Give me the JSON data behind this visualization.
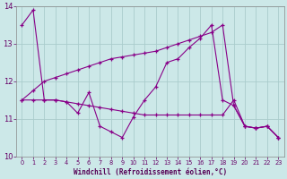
{
  "xlabel": "Windchill (Refroidissement éolien,°C)",
  "background_color": "#cce8e8",
  "grid_color": "#aacccc",
  "line_color": "#880088",
  "xlim": [
    -0.5,
    23.5
  ],
  "ylim": [
    10.0,
    14.0
  ],
  "yticks": [
    10,
    11,
    12,
    13,
    14
  ],
  "xticks": [
    0,
    1,
    2,
    3,
    4,
    5,
    6,
    7,
    8,
    9,
    10,
    11,
    12,
    13,
    14,
    15,
    16,
    17,
    18,
    19,
    20,
    21,
    22,
    23
  ],
  "s1_x": [
    0,
    1,
    2,
    3,
    4,
    5,
    6,
    7,
    8,
    9,
    10,
    11,
    12,
    13,
    14,
    15,
    16,
    17,
    18,
    19,
    20,
    21,
    22,
    23
  ],
  "s1_y": [
    13.5,
    13.9,
    11.5,
    11.5,
    11.45,
    11.15,
    11.7,
    10.8,
    10.65,
    10.5,
    11.05,
    11.5,
    11.85,
    12.5,
    12.6,
    12.9,
    13.15,
    13.5,
    11.5,
    11.35,
    10.8,
    10.75,
    10.8,
    10.5
  ],
  "s2_x": [
    0,
    1,
    2,
    3,
    4,
    5,
    6,
    7,
    8,
    9,
    10,
    11,
    12,
    13,
    14,
    15,
    16,
    17,
    18,
    19,
    20,
    21,
    22,
    23
  ],
  "s2_y": [
    11.5,
    11.75,
    12.0,
    12.1,
    12.2,
    12.3,
    12.4,
    12.5,
    12.6,
    12.65,
    12.7,
    12.75,
    12.8,
    12.9,
    13.0,
    13.1,
    13.2,
    13.3,
    13.5,
    11.35,
    10.8,
    10.75,
    10.8,
    10.5
  ],
  "s3_x": [
    0,
    1,
    2,
    3,
    4,
    5,
    6,
    7,
    8,
    9,
    10,
    11,
    12,
    13,
    14,
    15,
    16,
    17,
    18,
    19,
    20,
    21,
    22,
    23
  ],
  "s3_y": [
    11.5,
    11.5,
    11.5,
    11.5,
    11.45,
    11.4,
    11.35,
    11.3,
    11.25,
    11.2,
    11.15,
    11.1,
    11.1,
    11.1,
    11.1,
    11.1,
    11.1,
    11.1,
    11.1,
    11.5,
    10.8,
    10.75,
    10.8,
    10.5
  ]
}
